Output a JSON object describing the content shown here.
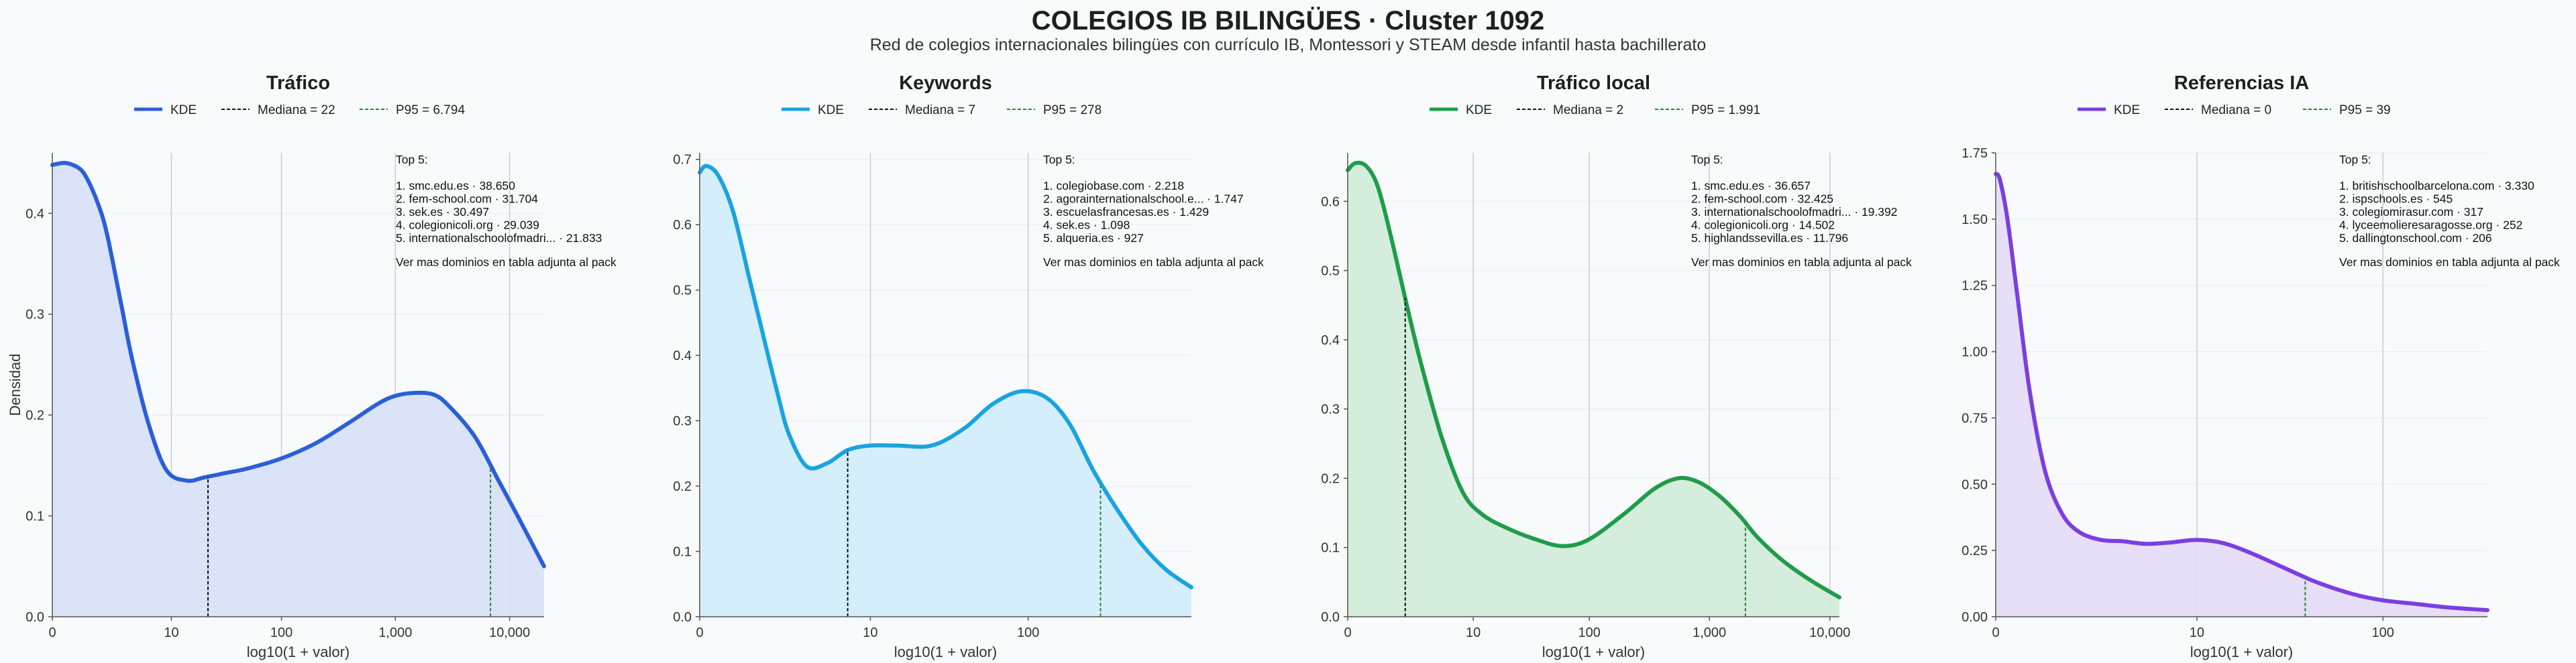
{
  "figure": {
    "title": "COLEGIOS IB BILINGÜES · Cluster 1092",
    "subtitle": "Red de colegios internacionales bilingües con currículo IB, Montessori y STEAM desde infantil hasta bachillerato",
    "background": "#f8fafc"
  },
  "chart_data": [
    {
      "type": "area",
      "title": "Tráfico",
      "xlabel": "log10(1 + valor)",
      "ylabel": "Densidad",
      "x_scale": "log10(1+x)",
      "xlim": [
        0,
        20000
      ],
      "ylim": [
        0,
        0.46
      ],
      "x_ticks": [
        0,
        10,
        100,
        1000,
        10000
      ],
      "x_tick_labels": [
        "0",
        "10",
        "100",
        "1,000",
        "10,000"
      ],
      "y_ticks": [
        0,
        0.1,
        0.2,
        0.3,
        0.4
      ],
      "y_tick_labels": [
        "0.0",
        "0.1",
        "0.2",
        "0.3",
        "0.4"
      ],
      "color": "#2b5fd9",
      "fill": "#d8e1f7",
      "series": [
        {
          "name": "KDE",
          "x": [
            0,
            0.3,
            0.7,
            1,
            1.5,
            2,
            3,
            4,
            6,
            9,
            14,
            20,
            30,
            50,
            100,
            200,
            400,
            700,
            1000,
            1500,
            2200,
            3000,
            5000,
            8000,
            12000,
            20000
          ],
          "y": [
            0.448,
            0.45,
            0.445,
            0.435,
            0.41,
            0.38,
            0.31,
            0.255,
            0.19,
            0.145,
            0.135,
            0.138,
            0.142,
            0.147,
            0.157,
            0.172,
            0.193,
            0.211,
            0.219,
            0.222,
            0.22,
            0.208,
            0.178,
            0.135,
            0.098,
            0.05
          ]
        }
      ],
      "markers": [
        {
          "name": "Mediana",
          "x": 22,
          "label": "Mediana = 22",
          "color": "#111111"
        },
        {
          "name": "P95",
          "x": 6794,
          "label": "P95 = 6.794",
          "color": "#2e8540"
        }
      ],
      "legend": {
        "kde": "KDE",
        "median": "Mediana = 22",
        "p95": "P95 = 6.794"
      },
      "annotation": {
        "header": "Top 5:",
        "items": [
          "1. smc.edu.es · 38.650",
          "2. fem-school.com · 31.704",
          "3. sek.es · 30.497",
          "4. colegionicoli.org · 29.039",
          "5. internationalschoolofmadri... · 21.833"
        ],
        "footer": "Ver mas dominios en tabla adjunta al pack"
      }
    },
    {
      "type": "area",
      "title": "Keywords",
      "xlabel": "log10(1 + valor)",
      "ylabel": "",
      "x_scale": "log10(1+x)",
      "xlim": [
        0,
        1000
      ],
      "ylim": [
        0,
        0.71
      ],
      "x_ticks": [
        0,
        10,
        100
      ],
      "x_tick_labels": [
        "0",
        "10",
        "100"
      ],
      "y_ticks": [
        0,
        0.1,
        0.2,
        0.3,
        0.4,
        0.5,
        0.6,
        0.7
      ],
      "y_tick_labels": [
        "0.0",
        "0.1",
        "0.2",
        "0.3",
        "0.4",
        "0.5",
        "0.6",
        "0.7"
      ],
      "color": "#1aa3e0",
      "fill": "#d2eefb",
      "series": [
        {
          "name": "KDE",
          "x": [
            0,
            0.1,
            0.3,
            0.6,
            1,
            1.5,
            2,
            2.5,
            3.5,
            5,
            7,
            10,
            15,
            25,
            40,
            60,
            90,
            130,
            180,
            250,
            350,
            500,
            700,
            1000
          ],
          "y": [
            0.68,
            0.69,
            0.675,
            0.62,
            0.52,
            0.42,
            0.34,
            0.28,
            0.23,
            0.235,
            0.255,
            0.262,
            0.262,
            0.262,
            0.288,
            0.325,
            0.345,
            0.335,
            0.295,
            0.225,
            0.165,
            0.11,
            0.072,
            0.045
          ]
        }
      ],
      "markers": [
        {
          "name": "Mediana",
          "x": 7,
          "label": "Mediana = 7",
          "color": "#111111"
        },
        {
          "name": "P95",
          "x": 278,
          "label": "P95 = 278",
          "color": "#2e8540"
        }
      ],
      "legend": {
        "kde": "KDE",
        "median": "Mediana = 7",
        "p95": "P95 = 278"
      },
      "annotation": {
        "header": "Top 5:",
        "items": [
          "1. colegiobase.com · 2.218",
          "2. agorainternationalschool.e... · 1.747",
          "3. escuelasfrancesas.es · 1.429",
          "4. sek.es · 1.098",
          "5. alqueria.es · 927"
        ],
        "footer": "Ver mas dominios en tabla adjunta al pack"
      }
    },
    {
      "type": "area",
      "title": "Tráfico local",
      "xlabel": "log10(1 + valor)",
      "ylabel": "",
      "x_scale": "log10(1+x)",
      "xlim": [
        0,
        12000
      ],
      "ylim": [
        0,
        0.67
      ],
      "x_ticks": [
        0,
        10,
        100,
        1000,
        10000
      ],
      "x_tick_labels": [
        "0",
        "10",
        "100",
        "1,000",
        "10,000"
      ],
      "y_ticks": [
        0,
        0.1,
        0.2,
        0.3,
        0.4,
        0.5,
        0.6
      ],
      "y_tick_labels": [
        "0.0",
        "0.1",
        "0.2",
        "0.3",
        "0.4",
        "0.5",
        "0.6"
      ],
      "color": "#1f9d4a",
      "fill": "#d3ecdb",
      "series": [
        {
          "name": "KDE",
          "x": [
            0,
            0.15,
            0.4,
            0.7,
            1,
            1.5,
            2,
            3,
            5,
            8,
            12,
            20,
            35,
            60,
            100,
            200,
            350,
            550,
            800,
            1200,
            1800,
            2500,
            4000,
            7000,
            12000
          ],
          "y": [
            0.645,
            0.655,
            0.652,
            0.63,
            0.59,
            0.52,
            0.46,
            0.37,
            0.26,
            0.18,
            0.148,
            0.128,
            0.112,
            0.102,
            0.112,
            0.15,
            0.185,
            0.2,
            0.195,
            0.175,
            0.145,
            0.115,
            0.082,
            0.052,
            0.028
          ]
        }
      ],
      "markers": [
        {
          "name": "Mediana",
          "x": 2,
          "label": "Mediana = 2",
          "color": "#111111"
        },
        {
          "name": "P95",
          "x": 1991,
          "label": "P95 = 1.991",
          "color": "#2e8540"
        }
      ],
      "legend": {
        "kde": "KDE",
        "median": "Mediana = 2",
        "p95": "P95 = 1.991"
      },
      "annotation": {
        "header": "Top 5:",
        "items": [
          "1. smc.edu.es · 36.657",
          "2. fem-school.com · 32.425",
          "3. internationalschoolofmadri... · 19.392",
          "4. colegionicoli.org · 14.502",
          "5. highlandssevilla.es · 11.796"
        ],
        "footer": "Ver mas dominios en tabla adjunta al pack"
      }
    },
    {
      "type": "area",
      "title": "Referencias IA",
      "xlabel": "log10(1 + valor)",
      "ylabel": "",
      "x_scale": "log10(1+x)",
      "xlim": [
        0,
        350
      ],
      "ylim": [
        0,
        1.75
      ],
      "x_ticks": [
        0,
        10,
        100
      ],
      "x_tick_labels": [
        "0",
        "10",
        "100"
      ],
      "y_ticks": [
        0,
        0.25,
        0.5,
        0.75,
        1.0,
        1.25,
        1.5,
        1.75
      ],
      "y_tick_labels": [
        "0.00",
        "0.25",
        "0.50",
        "0.75",
        "1.00",
        "1.25",
        "1.50",
        "1.75"
      ],
      "color": "#7b3fe0",
      "fill": "#e6dcf8",
      "series": [
        {
          "name": "KDE",
          "x": [
            0,
            0.05,
            0.15,
            0.3,
            0.5,
            0.8,
            1.2,
            1.7,
            2.5,
            3.5,
            5,
            7,
            10,
            14,
            20,
            30,
            45,
            70,
            100,
            150,
            220,
            350
          ],
          "y": [
            1.67,
            1.65,
            1.5,
            1.2,
            0.85,
            0.55,
            0.39,
            0.32,
            0.29,
            0.285,
            0.275,
            0.28,
            0.29,
            0.278,
            0.24,
            0.185,
            0.13,
            0.085,
            0.062,
            0.048,
            0.035,
            0.025
          ]
        }
      ],
      "markers": [
        {
          "name": "Mediana",
          "x": 0,
          "label": "Mediana = 0",
          "color": "#111111"
        },
        {
          "name": "P95",
          "x": 39,
          "label": "P95 = 39",
          "color": "#2e8540"
        }
      ],
      "legend": {
        "kde": "KDE",
        "median": "Mediana = 0",
        "p95": "P95 = 39"
      },
      "annotation": {
        "header": "Top 5:",
        "items": [
          "1. britishschoolbarcelona.com · 3.330",
          "2. ispschools.es · 545",
          "3. colegiomirasur.com · 317",
          "4. lyceemolieresaragosse.org · 252",
          "5. dallingtonschool.com · 206"
        ],
        "footer": "Ver mas dominios en tabla adjunta al pack"
      }
    }
  ]
}
